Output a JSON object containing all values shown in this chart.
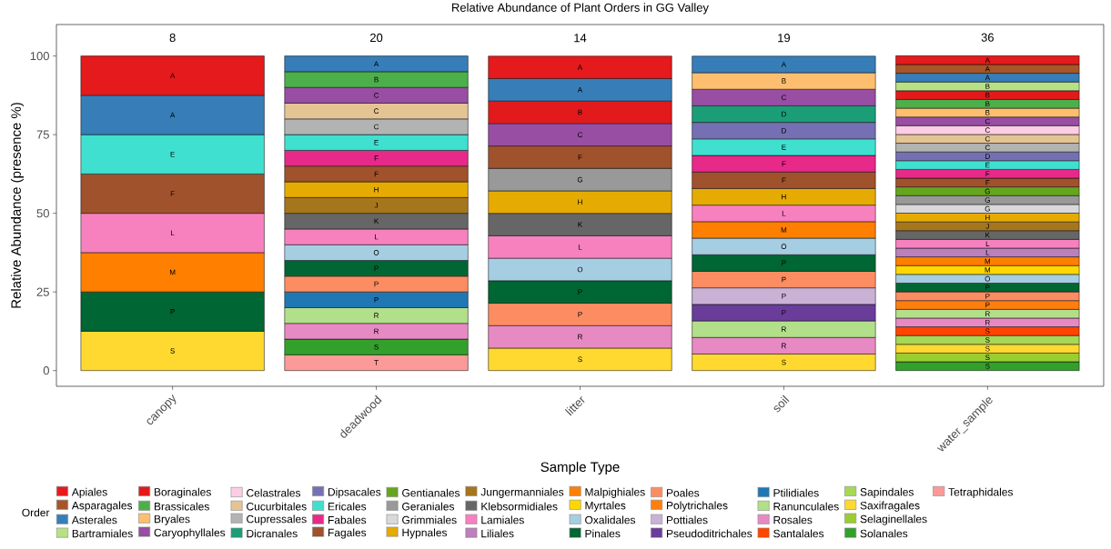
{
  "chart_data": {
    "type": "bar",
    "stacked": true,
    "title": "Relative Abundance of Plant Orders in GG Valley",
    "xlabel": "Sample Type",
    "ylabel": "Relative Abundance (presence %)",
    "legend_title": "Order",
    "legend": "bottom",
    "categories": [
      "canopy",
      "deadwood",
      "litter",
      "soil",
      "water_sample"
    ],
    "ylim": [
      -5,
      110
    ],
    "yticks": [
      0,
      25,
      50,
      75,
      100
    ],
    "annotations": [
      "8",
      "20",
      "14",
      "19",
      "36"
    ],
    "series": [
      {
        "name": "Tetraphidales",
        "color": "#fb9a99",
        "values": [
          null,
          5,
          null,
          null,
          null
        ],
        "value_labels": [
          null,
          "T",
          null,
          null,
          null
        ]
      },
      {
        "name": "Solanales",
        "color": "#33a02c",
        "values": [
          null,
          5,
          null,
          null,
          2.78
        ],
        "value_labels": [
          null,
          "S",
          null,
          null,
          "S"
        ]
      },
      {
        "name": "Selaginellales",
        "color": "#9acd32",
        "values": [
          null,
          null,
          null,
          null,
          2.78
        ],
        "value_labels": [
          null,
          null,
          null,
          null,
          "S"
        ]
      },
      {
        "name": "Saxifragales",
        "color": "#ffd92f",
        "values": [
          12.5,
          null,
          7.14,
          5.26,
          2.78
        ],
        "value_labels": [
          "S",
          null,
          "S",
          "S",
          "S"
        ]
      },
      {
        "name": "Sapindales",
        "color": "#a6d854",
        "values": [
          null,
          null,
          null,
          null,
          2.78
        ],
        "value_labels": [
          null,
          null,
          null,
          null,
          "S"
        ]
      },
      {
        "name": "Santalales",
        "color": "#ff4500",
        "values": [
          null,
          null,
          null,
          null,
          2.78
        ],
        "value_labels": [
          null,
          null,
          null,
          null,
          "S"
        ]
      },
      {
        "name": "Rosales",
        "color": "#e78ac3",
        "values": [
          null,
          5,
          7.14,
          5.26,
          2.78
        ],
        "value_labels": [
          null,
          "R",
          "R",
          "R",
          "R"
        ]
      },
      {
        "name": "Ranunculales",
        "color": "#b2df8a",
        "values": [
          null,
          5,
          null,
          5.26,
          2.78
        ],
        "value_labels": [
          null,
          "R",
          null,
          "R",
          "R"
        ]
      },
      {
        "name": "Ptilidiales",
        "color": "#1f78b4",
        "values": [
          null,
          5,
          null,
          null,
          null
        ],
        "value_labels": [
          null,
          "P",
          null,
          null,
          null
        ]
      },
      {
        "name": "Pseudoditrichales",
        "color": "#6a3d9a",
        "values": [
          null,
          null,
          null,
          5.26,
          null
        ],
        "value_labels": [
          null,
          null,
          null,
          "P",
          null
        ]
      },
      {
        "name": "Pottiales",
        "color": "#cab2d6",
        "values": [
          null,
          null,
          null,
          5.26,
          null
        ],
        "value_labels": [
          null,
          null,
          null,
          "P",
          null
        ]
      },
      {
        "name": "Polytrichales",
        "color": "#ff7f0e",
        "values": [
          null,
          null,
          null,
          null,
          2.78
        ],
        "value_labels": [
          null,
          null,
          null,
          null,
          "P"
        ]
      },
      {
        "name": "Poales",
        "color": "#fc8d62",
        "values": [
          null,
          5,
          7.14,
          5.26,
          2.78
        ],
        "value_labels": [
          null,
          "P",
          "P",
          "P",
          "P"
        ]
      },
      {
        "name": "Pinales",
        "color": "#006633",
        "values": [
          12.5,
          5,
          7.14,
          5.26,
          2.78
        ],
        "value_labels": [
          "P",
          "P",
          "P",
          "P",
          "P"
        ]
      },
      {
        "name": "Oxalidales",
        "color": "#a6cee3",
        "values": [
          null,
          5,
          7.14,
          5.26,
          2.78
        ],
        "value_labels": [
          null,
          "O",
          "O",
          "O",
          "O"
        ]
      },
      {
        "name": "Myrtales",
        "color": "#ffd700",
        "values": [
          null,
          null,
          null,
          null,
          2.78
        ],
        "value_labels": [
          null,
          null,
          null,
          null,
          "M"
        ]
      },
      {
        "name": "Malpighiales",
        "color": "#ff7f00",
        "values": [
          12.5,
          null,
          null,
          5.26,
          2.78
        ],
        "value_labels": [
          "M",
          null,
          null,
          "M",
          "M"
        ]
      },
      {
        "name": "Liliales",
        "color": "#bc80bd",
        "values": [
          null,
          null,
          null,
          null,
          2.78
        ],
        "value_labels": [
          null,
          null,
          null,
          null,
          "L"
        ]
      },
      {
        "name": "Lamiales",
        "color": "#f781bf",
        "values": [
          12.5,
          5,
          7.14,
          5.26,
          2.78
        ],
        "value_labels": [
          "L",
          "L",
          "L",
          "L",
          "L"
        ]
      },
      {
        "name": "Klebsormidiales",
        "color": "#666666",
        "values": [
          null,
          5,
          7.14,
          null,
          2.78
        ],
        "value_labels": [
          null,
          "K",
          "K",
          null,
          "K"
        ]
      },
      {
        "name": "Jungermanniales",
        "color": "#a6761d",
        "values": [
          null,
          5,
          null,
          null,
          2.78
        ],
        "value_labels": [
          null,
          "J",
          null,
          null,
          "J"
        ]
      },
      {
        "name": "Hypnales",
        "color": "#e6ab02",
        "values": [
          null,
          5,
          7.14,
          5.26,
          2.78
        ],
        "value_labels": [
          null,
          "H",
          "H",
          "H",
          "H"
        ]
      },
      {
        "name": "Grimmiales",
        "color": "#d9d9d9",
        "values": [
          null,
          null,
          null,
          null,
          2.78
        ],
        "value_labels": [
          null,
          null,
          null,
          null,
          "G"
        ]
      },
      {
        "name": "Geraniales",
        "color": "#999999",
        "values": [
          null,
          null,
          7.14,
          null,
          2.78
        ],
        "value_labels": [
          null,
          null,
          "G",
          null,
          "G"
        ]
      },
      {
        "name": "Gentianales",
        "color": "#66a61e",
        "values": [
          null,
          null,
          null,
          null,
          2.78
        ],
        "value_labels": [
          null,
          null,
          null,
          null,
          "G"
        ]
      },
      {
        "name": "Fagales",
        "color": "#a0522d",
        "values": [
          12.5,
          5,
          7.14,
          5.26,
          2.78
        ],
        "value_labels": [
          "F",
          "F",
          "F",
          "F",
          "F"
        ]
      },
      {
        "name": "Fabales",
        "color": "#e7298a",
        "values": [
          null,
          5,
          null,
          5.26,
          2.78
        ],
        "value_labels": [
          null,
          "F",
          null,
          "F",
          "F"
        ]
      },
      {
        "name": "Ericales",
        "color": "#40e0d0",
        "values": [
          12.5,
          5,
          null,
          5.26,
          2.78
        ],
        "value_labels": [
          "E",
          "E",
          null,
          "E",
          "E"
        ]
      },
      {
        "name": "Dipsacales",
        "color": "#7570b3",
        "values": [
          null,
          null,
          null,
          5.26,
          2.78
        ],
        "value_labels": [
          null,
          null,
          null,
          "D",
          "D"
        ]
      },
      {
        "name": "Dicranales",
        "color": "#1b9e77",
        "values": [
          null,
          null,
          null,
          5.26,
          null
        ],
        "value_labels": [
          null,
          null,
          null,
          "D",
          null
        ]
      },
      {
        "name": "Cupressales",
        "color": "#b3b3b3",
        "values": [
          null,
          5,
          null,
          null,
          2.78
        ],
        "value_labels": [
          null,
          "C",
          null,
          null,
          "C"
        ]
      },
      {
        "name": "Cucurbitales",
        "color": "#e5c494",
        "values": [
          null,
          5,
          null,
          null,
          2.78
        ],
        "value_labels": [
          null,
          "C",
          null,
          null,
          "C"
        ]
      },
      {
        "name": "Celastrales",
        "color": "#fccde5",
        "values": [
          null,
          null,
          null,
          null,
          2.78
        ],
        "value_labels": [
          null,
          null,
          null,
          null,
          "C"
        ]
      },
      {
        "name": "Caryophyllales",
        "color": "#984ea3",
        "values": [
          null,
          5,
          7.14,
          5.26,
          2.78
        ],
        "value_labels": [
          null,
          "C",
          "C",
          "C",
          "C"
        ]
      },
      {
        "name": "Bryales",
        "color": "#fdbf6f",
        "values": [
          null,
          null,
          null,
          5.26,
          2.78
        ],
        "value_labels": [
          null,
          null,
          null,
          "B",
          "B"
        ]
      },
      {
        "name": "Brassicales",
        "color": "#4daf4a",
        "values": [
          null,
          5,
          null,
          null,
          2.78
        ],
        "value_labels": [
          null,
          "B",
          null,
          null,
          "B"
        ]
      },
      {
        "name": "Boraginales",
        "color": "#e31a1c",
        "values": [
          null,
          null,
          7.14,
          null,
          2.78
        ],
        "value_labels": [
          null,
          null,
          "B",
          null,
          "B"
        ]
      },
      {
        "name": "Bartramiales",
        "color": "#b8e186",
        "values": [
          null,
          null,
          null,
          null,
          2.78
        ],
        "value_labels": [
          null,
          null,
          null,
          null,
          "B"
        ]
      },
      {
        "name": "Asterales",
        "color": "#377eb8",
        "values": [
          12.5,
          5,
          7.14,
          5.26,
          2.78
        ],
        "value_labels": [
          "A",
          "A",
          "A",
          "A",
          "A"
        ]
      },
      {
        "name": "Asparagales",
        "color": "#a65628",
        "values": [
          null,
          null,
          null,
          null,
          2.78
        ],
        "value_labels": [
          null,
          null,
          null,
          null,
          "A"
        ]
      },
      {
        "name": "Apiales",
        "color": "#e41a1c",
        "values": [
          12.5,
          null,
          7.14,
          null,
          2.78
        ],
        "value_labels": [
          "A",
          null,
          "A",
          null,
          "A"
        ]
      }
    ]
  }
}
